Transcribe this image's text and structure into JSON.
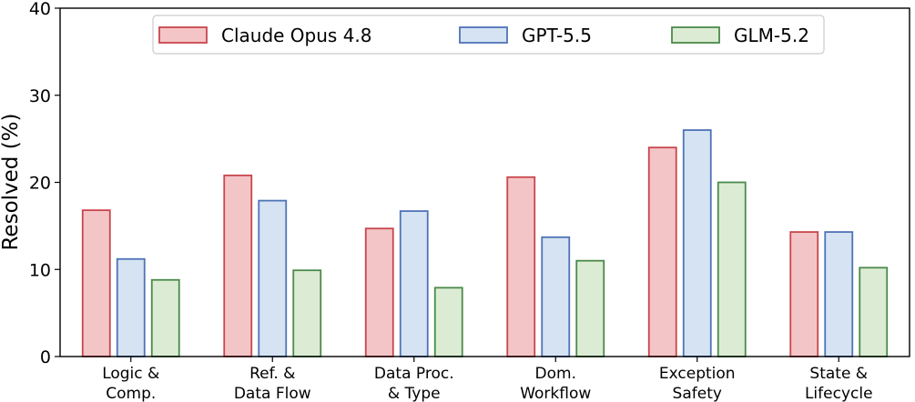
{
  "chart_data": {
    "type": "bar",
    "title": "",
    "xlabel": "",
    "ylabel": "Resolved (%)",
    "ylim": [
      0,
      40
    ],
    "yticks": [
      0,
      10,
      20,
      30,
      40
    ],
    "grid": false,
    "legend_position": "top-center",
    "categories": [
      [
        "Logic &",
        "Comp."
      ],
      [
        "Ref. &",
        "Data Flow"
      ],
      [
        "Data Proc.",
        "& Type"
      ],
      [
        "Dom.",
        "Workflow"
      ],
      [
        "Exception",
        "Safety"
      ],
      [
        "State &",
        "Lifecycle"
      ]
    ],
    "series": [
      {
        "name": "Claude Opus 4.8",
        "fill": "#f4c5c7",
        "stroke": "#c8454b",
        "values": [
          16.8,
          20.8,
          14.7,
          20.6,
          24.0,
          14.3
        ]
      },
      {
        "name": "GPT-5.5",
        "fill": "#d5e3f2",
        "stroke": "#4f73b8",
        "values": [
          11.2,
          17.9,
          16.7,
          13.7,
          26.0,
          14.3
        ]
      },
      {
        "name": "GLM-5.2",
        "fill": "#dcecd4",
        "stroke": "#4a8a4a",
        "values": [
          8.8,
          9.9,
          7.9,
          11.0,
          20.0,
          10.2
        ]
      }
    ]
  }
}
